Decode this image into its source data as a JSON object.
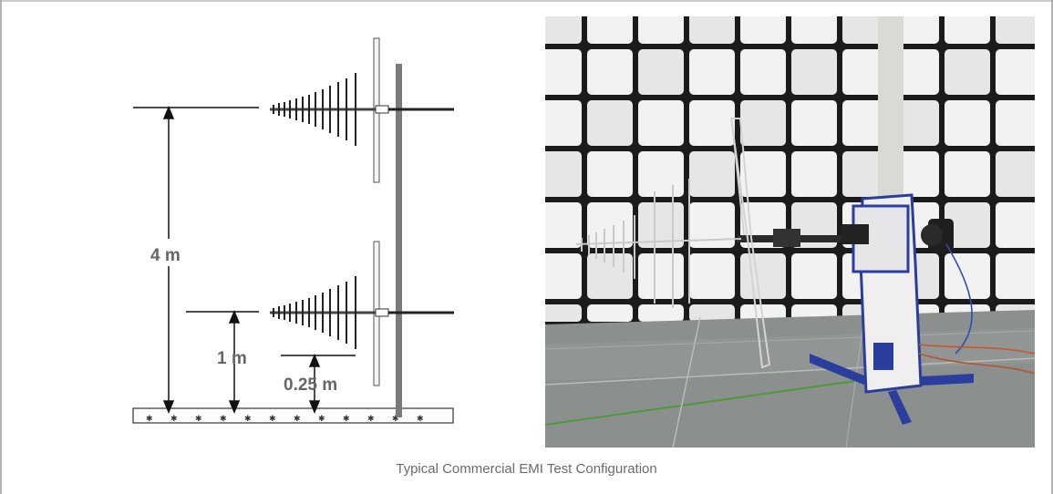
{
  "diagram": {
    "label_4m": "4 m",
    "label_1m": "1 m",
    "label_025m": "0.25 m"
  },
  "photo": {
    "description_icon": "emi-chamber-photo"
  },
  "caption": "Typical Commercial EMI Test Configuration",
  "colors": {
    "frame": "#9a9a9a",
    "diagram_line": "#111111",
    "label": "#666666",
    "mast": "#7a7a7a",
    "absorber": "#f1f1f1",
    "chamber_gap": "#1a1a1a",
    "floor": "#8a8f8d",
    "positioner_accent": "#2b3e9e"
  }
}
